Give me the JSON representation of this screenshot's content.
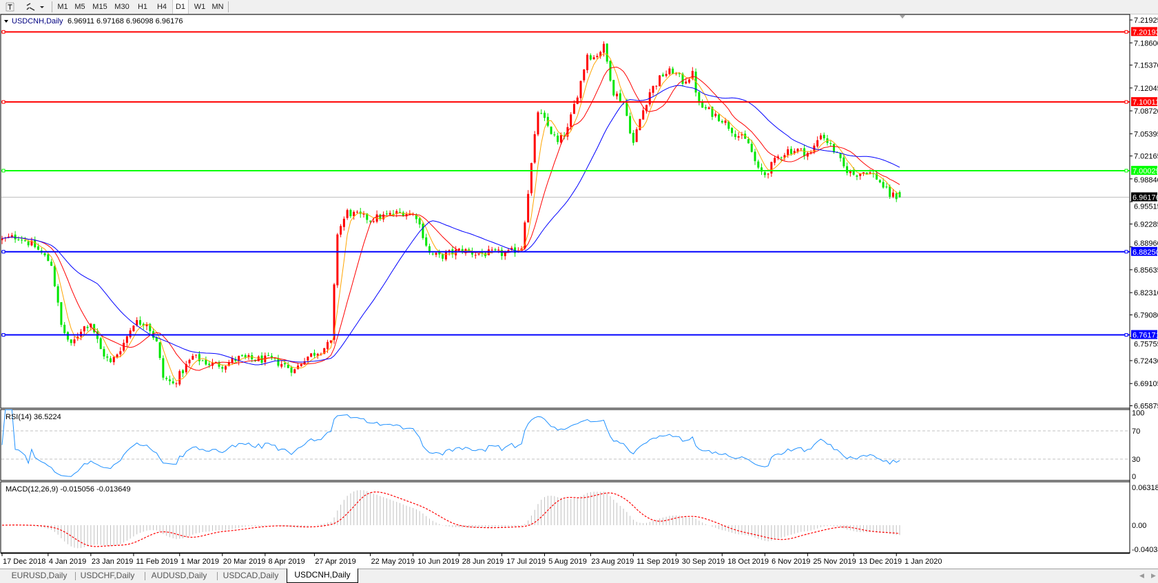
{
  "toolbar": {
    "icons": [
      "text-tool-icon",
      "line-tools-icon",
      "dropdown-arrow-icon"
    ],
    "timeframes": [
      "M1",
      "M5",
      "M15",
      "M30",
      "H1",
      "H4",
      "D1",
      "W1",
      "MN"
    ],
    "active_timeframe": "D1"
  },
  "chart": {
    "symbol_label": "USDCNH,Daily",
    "ohlc_label": "6.96911 6.97168 6.96098 6.96176",
    "colors": {
      "bull_candle": "#ff0000",
      "bear_candle": "#00e600",
      "ma_fast": "#ffa500",
      "ma_mid": "#ff0000",
      "ma_slow": "#0000ff",
      "price_line": "#c0c0c0"
    },
    "price_axis": [
      "7.21925",
      "7.18600",
      "7.15370",
      "7.12045",
      "7.08720",
      "7.05395",
      "7.02165",
      "6.98840",
      "6.95515",
      "6.92285",
      "6.88960",
      "6.85635",
      "6.82310",
      "6.79080",
      "6.75755",
      "6.72430",
      "6.69105",
      "6.65875"
    ],
    "horizontal_lines": [
      {
        "value": "7.20193",
        "color": "#ff0000",
        "text_color": "#ffffff"
      },
      {
        "value": "7.10011",
        "color": "#ff0000",
        "text_color": "#ffffff"
      },
      {
        "value": "7.00029",
        "color": "#00ff00",
        "text_color": "#ffffff"
      },
      {
        "value": "6.88250",
        "color": "#0000ff",
        "text_color": "#ffffff"
      },
      {
        "value": "6.76171",
        "color": "#0000ff",
        "text_color": "#ffffff"
      }
    ],
    "current_price": {
      "value": "6.96176",
      "color": "#000000"
    },
    "last_bar": {
      "open": 6.96911,
      "high": 6.97168,
      "low": 6.96098,
      "close": 6.96176
    },
    "date_axis": [
      "17 Dec 2018",
      "4 Jan 2019",
      "23 Jan 2019",
      "11 Feb 2019",
      "1 Mar 2019",
      "20 Mar 2019",
      "8 Apr 2019",
      "27 Apr 2019",
      "22 May 2019",
      "10 Jun 2019",
      "28 Jun 2019",
      "17 Jul 2019",
      "5 Aug 2019",
      "23 Aug 2019",
      "11 Sep 2019",
      "30 Sep 2019",
      "18 Oct 2019",
      "6 Nov 2019",
      "25 Nov 2019",
      "13 Dec 2019",
      "1 Jan 2020"
    ]
  },
  "rsi": {
    "label": "RSI(14) 36.5224",
    "levels": [
      "100",
      "70",
      "30",
      "0"
    ],
    "color": "#1e90ff"
  },
  "macd": {
    "label": "MACD(12,26,9) -0.015056 -0.013649",
    "axis": [
      "0.063184",
      "0.00",
      "-0.04035"
    ],
    "histogram_color": "#c0c0c0",
    "signal_color": "#ff0000"
  },
  "chart_data": {
    "type": "candlestick",
    "symbol": "USDCNH",
    "timeframe": "Daily",
    "ylim": [
      6.65875,
      7.21925
    ],
    "approx_closes": [
      [
        "2018-12-17",
        6.9
      ],
      [
        "2018-12-24",
        6.905
      ],
      [
        "2018-12-31",
        6.89
      ],
      [
        "2019-01-07",
        6.865
      ],
      [
        "2019-01-10",
        6.775
      ],
      [
        "2019-01-15",
        6.745
      ],
      [
        "2019-01-18",
        6.77
      ],
      [
        "2019-01-23",
        6.78
      ],
      [
        "2019-01-28",
        6.74
      ],
      [
        "2019-01-31",
        6.72
      ],
      [
        "2019-02-06",
        6.75
      ],
      [
        "2019-02-11",
        6.78
      ],
      [
        "2019-02-15",
        6.78
      ],
      [
        "2019-02-20",
        6.75
      ],
      [
        "2019-02-22",
        6.7
      ],
      [
        "2019-02-27",
        6.69
      ],
      [
        "2019-03-04",
        6.71
      ],
      [
        "2019-03-07",
        6.73
      ],
      [
        "2019-03-14",
        6.72
      ],
      [
        "2019-03-20",
        6.718
      ],
      [
        "2019-03-27",
        6.728
      ],
      [
        "2019-04-02",
        6.726
      ],
      [
        "2019-04-09",
        6.726
      ],
      [
        "2019-04-15",
        6.72
      ],
      [
        "2019-04-19",
        6.71
      ],
      [
        "2019-04-24",
        6.728
      ],
      [
        "2019-05-01",
        6.74
      ],
      [
        "2019-05-06",
        6.75
      ],
      [
        "2019-05-08",
        6.91
      ],
      [
        "2019-05-13",
        6.94
      ],
      [
        "2019-05-16",
        6.935
      ],
      [
        "2019-05-22",
        6.93
      ],
      [
        "2019-05-29",
        6.935
      ],
      [
        "2019-06-05",
        6.94
      ],
      [
        "2019-06-11",
        6.935
      ],
      [
        "2019-06-17",
        6.88
      ],
      [
        "2019-06-20",
        6.875
      ],
      [
        "2019-06-25",
        6.88
      ],
      [
        "2019-07-01",
        6.885
      ],
      [
        "2019-07-05",
        6.88
      ],
      [
        "2019-07-12",
        6.88
      ],
      [
        "2019-07-19",
        6.88
      ],
      [
        "2019-07-25",
        6.89
      ],
      [
        "2019-07-29",
        6.97
      ],
      [
        "2019-08-01",
        7.087
      ],
      [
        "2019-08-06",
        7.065
      ],
      [
        "2019-08-09",
        7.04
      ],
      [
        "2019-08-14",
        7.06
      ],
      [
        "2019-08-20",
        7.13
      ],
      [
        "2019-08-22",
        7.17
      ],
      [
        "2019-08-26",
        7.165
      ],
      [
        "2019-08-29",
        7.18
      ],
      [
        "2019-09-03",
        7.115
      ],
      [
        "2019-09-06",
        7.1
      ],
      [
        "2019-09-11",
        7.04
      ],
      [
        "2019-09-13",
        7.075
      ],
      [
        "2019-09-18",
        7.115
      ],
      [
        "2019-09-24",
        7.14
      ],
      [
        "2019-09-27",
        7.145
      ],
      [
        "2019-10-02",
        7.13
      ],
      [
        "2019-10-07",
        7.14
      ],
      [
        "2019-10-09",
        7.095
      ],
      [
        "2019-10-14",
        7.087
      ],
      [
        "2019-10-18",
        7.075
      ],
      [
        "2019-10-24",
        7.055
      ],
      [
        "2019-10-30",
        7.04
      ],
      [
        "2019-11-04",
        7.0
      ],
      [
        "2019-11-06",
        6.995
      ],
      [
        "2019-11-12",
        7.02
      ],
      [
        "2019-11-15",
        7.03
      ],
      [
        "2019-11-20",
        7.03
      ],
      [
        "2019-11-26",
        7.025
      ],
      [
        "2019-11-29",
        7.055
      ],
      [
        "2019-12-05",
        7.03
      ],
      [
        "2019-12-10",
        7.005
      ],
      [
        "2019-12-13",
        6.995
      ],
      [
        "2019-12-19",
        7.0
      ],
      [
        "2019-12-24",
        6.99
      ],
      [
        "2019-12-30",
        6.965
      ],
      [
        "2020-01-02",
        6.96176
      ]
    ]
  },
  "tabs": [
    {
      "label": "EURUSD,Daily",
      "active": false
    },
    {
      "label": "USDCHF,Daily",
      "active": false
    },
    {
      "label": "AUDUSD,Daily",
      "active": false
    },
    {
      "label": "USDCAD,Daily",
      "active": false
    },
    {
      "label": "USDCNH,Daily",
      "active": true
    }
  ]
}
